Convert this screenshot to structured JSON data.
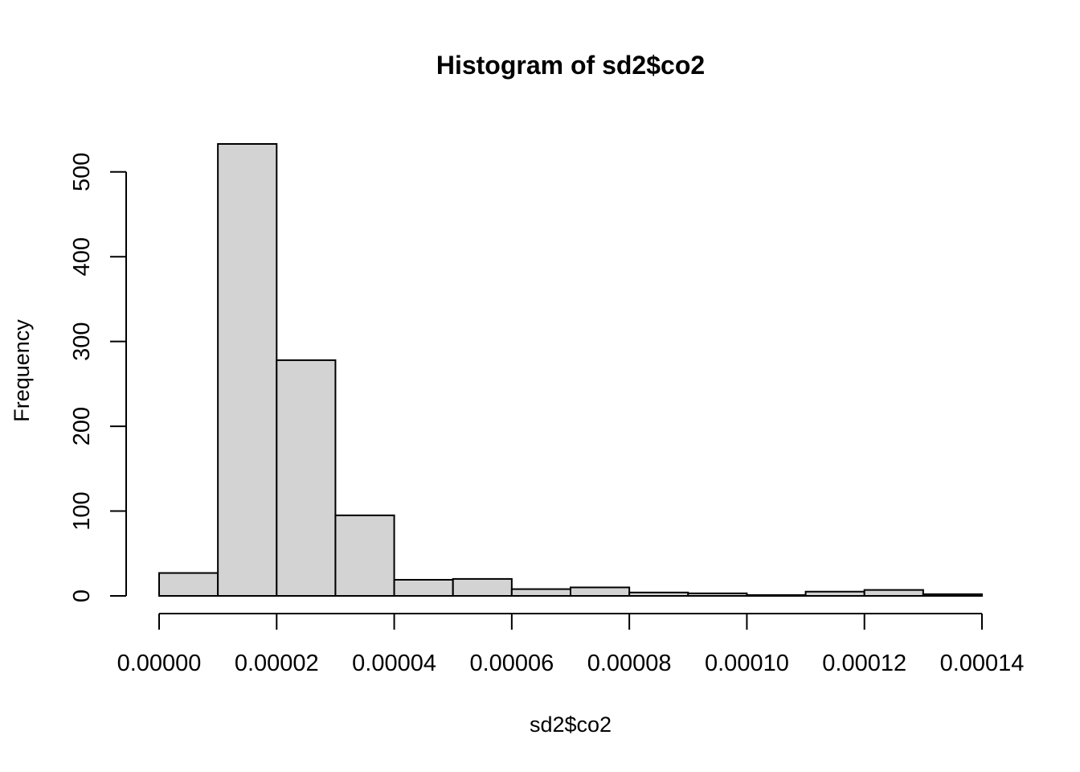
{
  "chart_data": {
    "type": "bar",
    "title": "Histogram of sd2$co2",
    "xlabel": "sd2$co2",
    "ylabel": "Frequency",
    "bin_edges": [
      0,
      1e-05,
      2e-05,
      3e-05,
      4e-05,
      5e-05,
      6e-05,
      7e-05,
      8e-05,
      9e-05,
      0.0001,
      0.00011,
      0.00012,
      0.00013,
      0.00014
    ],
    "values": [
      27,
      533,
      278,
      95,
      19,
      20,
      8,
      10,
      4,
      3,
      1,
      5,
      7,
      2
    ],
    "xlim": [
      0,
      0.00014
    ],
    "ylim": [
      0,
      533
    ],
    "x_ticks": [
      "0.00000",
      "0.00002",
      "0.00004",
      "0.00006",
      "0.00008",
      "0.00010",
      "0.00012",
      "0.00014"
    ],
    "y_ticks": [
      "0",
      "100",
      "200",
      "300",
      "400",
      "500"
    ],
    "grid": false,
    "bar_fill": "#d3d3d3",
    "bar_stroke": "#000000"
  }
}
